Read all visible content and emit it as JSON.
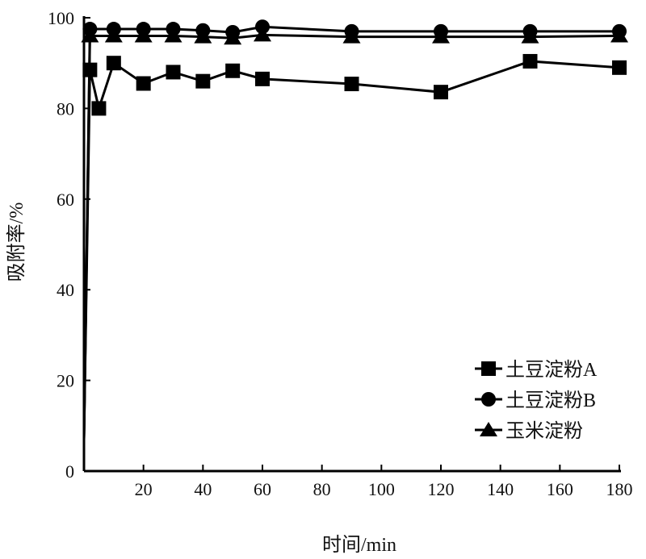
{
  "chart_data": {
    "type": "line",
    "title": "",
    "xlabel": "时间/min",
    "ylabel": "吸附率/%",
    "xlim": [
      0,
      180
    ],
    "ylim": [
      0,
      100
    ],
    "xticks": [
      "20",
      "40",
      "60",
      "80",
      "100",
      "120",
      "140",
      "160",
      "180"
    ],
    "xtick_values": [
      20,
      40,
      60,
      80,
      100,
      120,
      140,
      160,
      180
    ],
    "yticks": [
      "0",
      "20",
      "40",
      "60",
      "80",
      "100"
    ],
    "ytick_values": [
      0,
      20,
      40,
      60,
      80,
      100
    ],
    "grid": false,
    "legend_position": "bottom-right",
    "series": [
      {
        "name": "土豆淀粉A",
        "marker": "square",
        "x": [
          0,
          2,
          5,
          10,
          20,
          30,
          40,
          50,
          60,
          90,
          120,
          150,
          180
        ],
        "values": [
          7,
          88.5,
          80,
          90,
          85.5,
          88,
          86,
          88.3,
          86.5,
          85.4,
          83.6,
          90.4,
          89
        ]
      },
      {
        "name": "土豆淀粉B",
        "marker": "circle",
        "x": [
          0,
          2,
          10,
          20,
          30,
          40,
          50,
          60,
          90,
          120,
          150,
          180
        ],
        "values": [
          7,
          97.5,
          97.5,
          97.5,
          97.5,
          97.2,
          96.8,
          98,
          97,
          97,
          97,
          97
        ]
      },
      {
        "name": "玉米淀粉",
        "marker": "triangle",
        "x": [
          0,
          2,
          10,
          20,
          30,
          40,
          50,
          60,
          90,
          120,
          150,
          180
        ],
        "values": [
          7,
          96,
          96,
          96,
          96,
          95.8,
          95.5,
          96.2,
          95.8,
          95.8,
          95.8,
          96
        ]
      }
    ]
  }
}
